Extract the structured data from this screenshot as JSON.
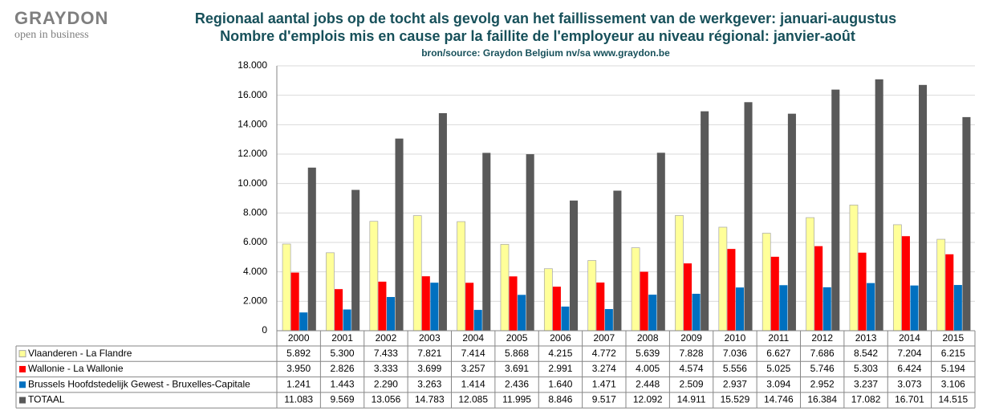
{
  "logo": {
    "name": "GRAYDON",
    "tagline": "open in business"
  },
  "chart_data": {
    "type": "bar",
    "title": "Regionaal aantal jobs op de tocht als gevolg van het faillissement van de werkgever: januari-augustus",
    "subtitle": "Nombre d'emplois mis en cause  par la faillite de l'employeur au niveau régional: janvier-août",
    "source": "bron/source:  Graydon  Belgium nv/sa     www.graydon.be",
    "categories": [
      "2000",
      "2001",
      "2002",
      "2003",
      "2004",
      "2005",
      "2006",
      "2007",
      "2008",
      "2009",
      "2010",
      "2011",
      "2012",
      "2013",
      "2014",
      "2015"
    ],
    "series": [
      {
        "name": "Vlaanderen - La Flandre",
        "color": "#ffff99",
        "values": [
          5892,
          5300,
          7433,
          7821,
          7414,
          5868,
          4215,
          4772,
          5639,
          7828,
          7036,
          6627,
          7686,
          8542,
          7204,
          6215
        ],
        "value_labels": [
          "5.892",
          "5.300",
          "7.433",
          "7.821",
          "7.414",
          "5.868",
          "4.215",
          "4.772",
          "5.639",
          "7.828",
          "7.036",
          "6.627",
          "7.686",
          "8.542",
          "7.204",
          "6.215"
        ]
      },
      {
        "name": "Wallonie - La Wallonie",
        "color": "#ff0000",
        "values": [
          3950,
          2826,
          3333,
          3699,
          3257,
          3691,
          2991,
          3274,
          4005,
          4574,
          5556,
          5025,
          5746,
          5303,
          6424,
          5194
        ],
        "value_labels": [
          "3.950",
          "2.826",
          "3.333",
          "3.699",
          "3.257",
          "3.691",
          "2.991",
          "3.274",
          "4.005",
          "4.574",
          "5.556",
          "5.025",
          "5.746",
          "5.303",
          "6.424",
          "5.194"
        ]
      },
      {
        "name": "Brussels Hoofdstedelijk Gewest - Bruxelles-Capitale",
        "color": "#0070c0",
        "values": [
          1241,
          1443,
          2290,
          3263,
          1414,
          2436,
          1640,
          1471,
          2448,
          2509,
          2937,
          3094,
          2952,
          3237,
          3073,
          3106
        ],
        "value_labels": [
          "1.241",
          "1.443",
          "2.290",
          "3.263",
          "1.414",
          "2.436",
          "1.640",
          "1.471",
          "2.448",
          "2.509",
          "2.937",
          "3.094",
          "2.952",
          "3.237",
          "3.073",
          "3.106"
        ]
      },
      {
        "name": "TOTAAL",
        "color": "#595959",
        "values": [
          11083,
          9569,
          13056,
          14783,
          12085,
          11995,
          8846,
          9517,
          12092,
          14911,
          15529,
          14746,
          16384,
          17082,
          16701,
          14515
        ],
        "value_labels": [
          "11.083",
          "9.569",
          "13.056",
          "14.783",
          "12.085",
          "11.995",
          "8.846",
          "9.517",
          "12.092",
          "14.911",
          "15.529",
          "14.746",
          "16.384",
          "17.082",
          "16.701",
          "14.515"
        ]
      }
    ],
    "ylim": [
      0,
      18000
    ],
    "yticks": [
      0,
      {
        "value": 2000,
        "label": "2.000"
      },
      {
        "value": 4000,
        "label": "4.000"
      },
      {
        "value": 6000,
        "label": "6.000"
      },
      {
        "value": 8000,
        "label": "8.000"
      },
      {
        "value": 10000,
        "label": "10.000"
      },
      {
        "value": 12000,
        "label": "12.000"
      },
      {
        "value": 14000,
        "label": "14.000"
      },
      {
        "value": 16000,
        "label": "16.000"
      },
      {
        "value": 18000,
        "label": "18.000"
      }
    ],
    "grid": true
  }
}
